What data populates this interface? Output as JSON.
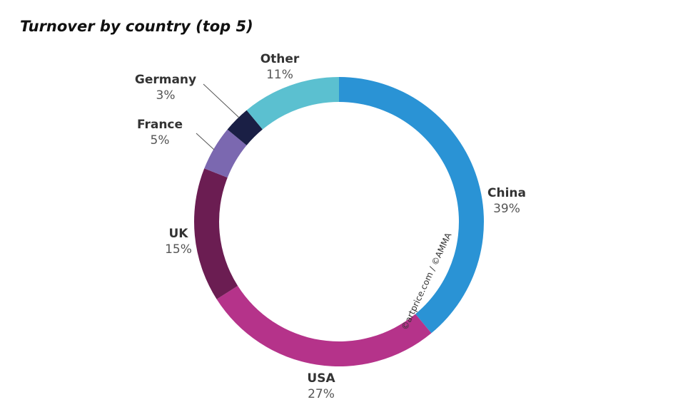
{
  "chart_data": {
    "type": "pie",
    "title": "Turnover by country (top 5)",
    "categories": [
      "China",
      "USA",
      "UK",
      "France",
      "Germany",
      "Other"
    ],
    "values": [
      39,
      27,
      15,
      5,
      3,
      11
    ],
    "value_labels": [
      "39%",
      "27%",
      "15%",
      "5%",
      "3%",
      "11%"
    ],
    "colors": [
      "#2a93d5",
      "#b5338a",
      "#6b1d52",
      "#7b68b0",
      "#1a1f45",
      "#5bc0d0"
    ],
    "watermark": "©artprice.com / ©AMMA"
  }
}
